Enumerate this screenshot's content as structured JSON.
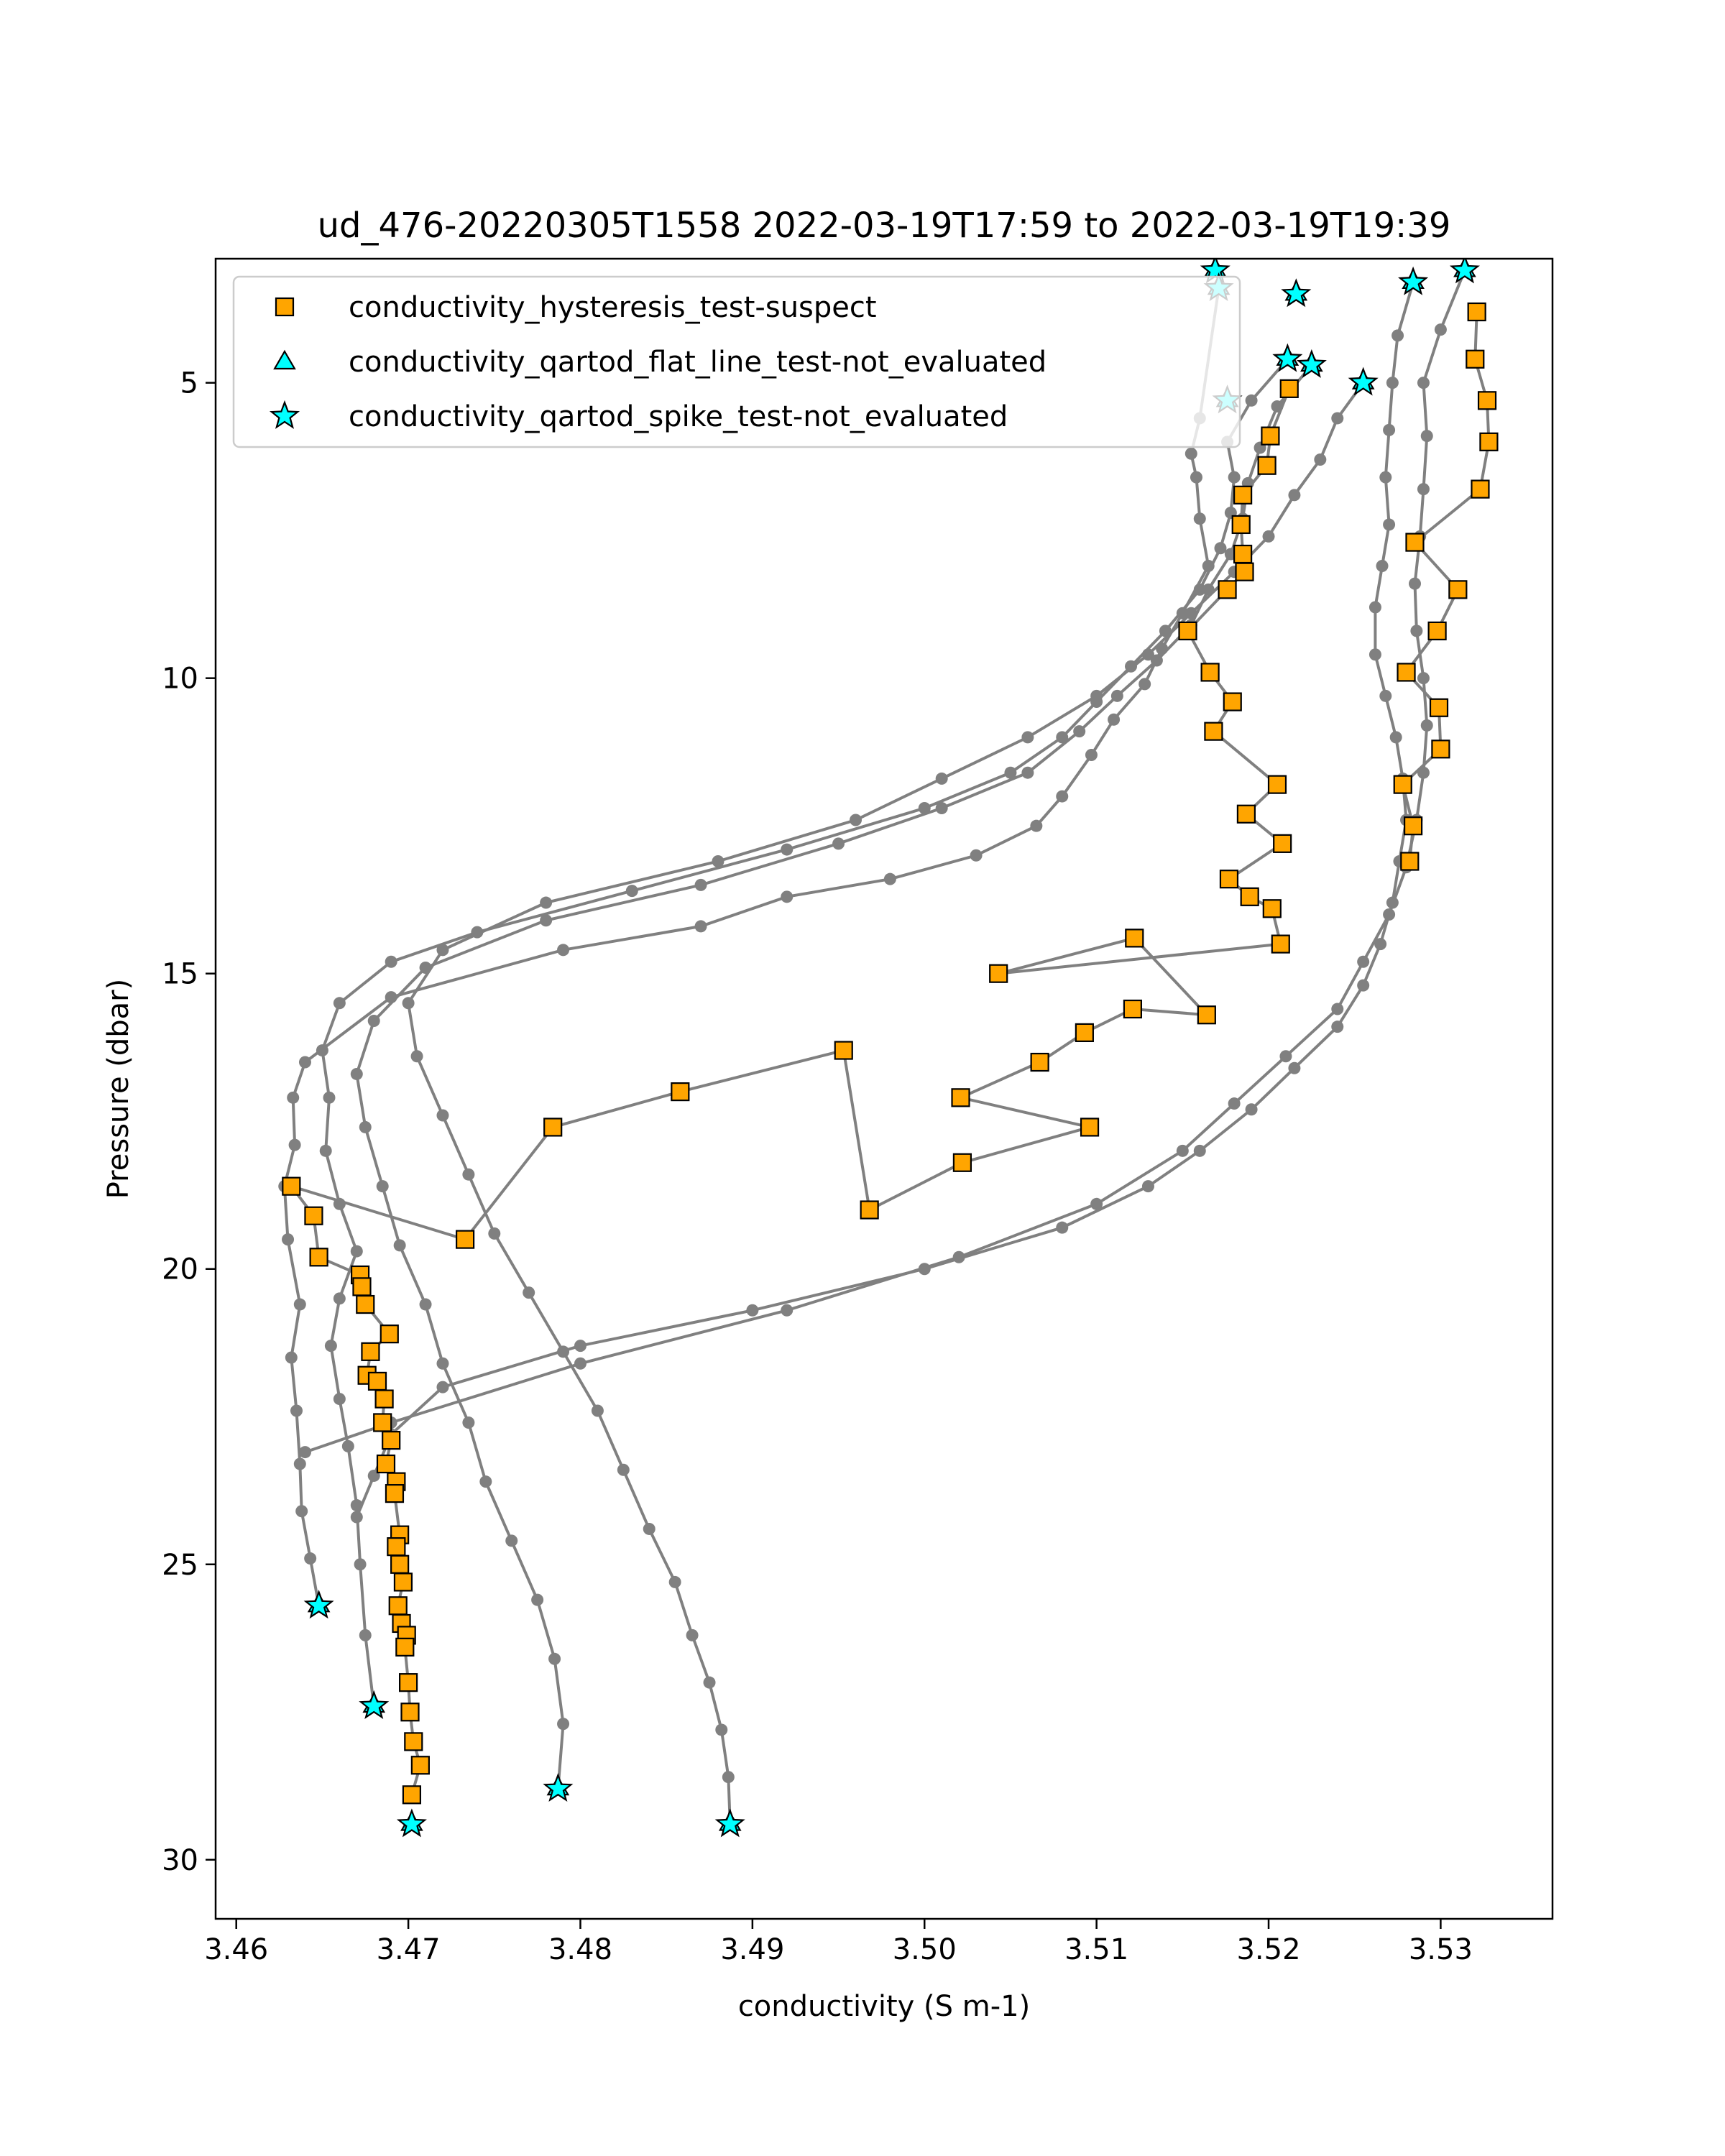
{
  "chart_data": {
    "type": "scatter",
    "title": "ud_476-20220305T1558 2022-03-19T17:59 to 2022-03-19T19:39",
    "xlabel": "conductivity (S m-1)",
    "ylabel": "Pressure (dbar)",
    "xlim": [
      3.4588,
      3.5365
    ],
    "ylim": [
      31.0,
      2.9
    ],
    "y_inverted": true,
    "grid": false,
    "legend_placement": "top-left",
    "xticks": [
      3.46,
      3.47,
      3.48,
      3.49,
      3.5,
      3.51,
      3.52,
      3.53
    ],
    "xtick_labels": [
      "3.46",
      "3.47",
      "3.48",
      "3.49",
      "3.50",
      "3.51",
      "3.52",
      "3.53"
    ],
    "yticks": [
      5,
      10,
      15,
      20,
      25,
      30
    ],
    "ytick_labels": [
      "5",
      "10",
      "15",
      "20",
      "25",
      "30"
    ],
    "colors": {
      "profile_line": "#808080",
      "suspect_fill": "#ffa500",
      "not_evaluated_fill": "#00ffff",
      "marker_edge": "#000000"
    },
    "series": [
      {
        "name": "conductivity_hysteresis_test-suspect",
        "marker": "square",
        "x": [
          3.5212,
          3.5201,
          3.5199,
          3.5185,
          3.5184,
          3.5185,
          3.5186,
          3.5176,
          3.5153,
          3.5166,
          3.5179,
          3.5168,
          3.5205,
          3.5187,
          3.5208,
          3.5177,
          3.5189,
          3.5202,
          3.5207,
          3.5043,
          3.5122,
          3.5164,
          3.5121,
          3.5093,
          3.5067,
          3.5021,
          3.5096,
          3.5022,
          3.4968,
          3.4953,
          3.4858,
          3.4784,
          3.4733,
          3.4632,
          3.4645,
          3.4648,
          3.4672,
          3.4673,
          3.4675,
          3.4689,
          3.4678,
          3.4676,
          3.4682,
          3.4686,
          3.4685,
          3.469,
          3.4687,
          3.4693,
          3.4692,
          3.4695,
          3.4693,
          3.4695,
          3.4697,
          3.4694,
          3.4696,
          3.4699,
          3.4698,
          3.47,
          3.4701,
          3.4703,
          3.4707,
          3.4702,
          3.5321,
          3.532,
          3.5327,
          3.5328,
          3.5323,
          3.5285,
          3.531,
          3.5298,
          3.528,
          3.5299,
          3.53,
          3.5278,
          3.5284,
          3.5282
        ],
        "y": [
          5.1,
          5.9,
          6.4,
          6.9,
          7.4,
          7.9,
          8.2,
          8.5,
          9.2,
          9.9,
          10.4,
          10.9,
          11.8,
          12.3,
          12.8,
          13.4,
          13.7,
          13.9,
          14.5,
          15.0,
          14.4,
          15.7,
          15.6,
          16.0,
          16.5,
          17.1,
          17.6,
          18.2,
          19.0,
          16.3,
          17.0,
          17.6,
          19.5,
          18.6,
          19.1,
          19.8,
          20.1,
          20.3,
          20.6,
          21.1,
          21.4,
          21.8,
          21.9,
          22.2,
          22.6,
          22.9,
          23.3,
          23.6,
          23.8,
          24.5,
          24.7,
          25.0,
          25.3,
          25.7,
          26.0,
          26.2,
          26.4,
          27.0,
          27.5,
          28.0,
          28.4,
          28.9,
          3.8,
          4.6,
          5.3,
          6.0,
          6.8,
          7.7,
          8.5,
          9.2,
          9.9,
          10.5,
          11.2,
          11.8,
          12.5,
          13.1
        ]
      },
      {
        "name": "conductivity_qartod_flat_line_test-not_evaluated",
        "marker": "triangle",
        "x": [
          3.5169,
          3.5171,
          3.5216,
          3.5211,
          3.5225,
          3.5255,
          3.5284,
          3.5314,
          3.5176,
          3.4648,
          3.468,
          3.4702,
          3.4787,
          3.4887
        ],
        "y": [
          3.1,
          3.4,
          3.5,
          4.6,
          4.7,
          5.0,
          3.3,
          3.1,
          5.3,
          25.7,
          27.4,
          29.4,
          28.8,
          29.4
        ]
      },
      {
        "name": "conductivity_qartod_spike_test-not_evaluated",
        "marker": "star",
        "x": [
          3.5169,
          3.5171,
          3.5216,
          3.5211,
          3.5225,
          3.5255,
          3.5284,
          3.5314,
          3.5176,
          3.4648,
          3.468,
          3.4702,
          3.4787,
          3.4887
        ],
        "y": [
          3.1,
          3.4,
          3.5,
          4.6,
          4.7,
          5.0,
          3.3,
          3.1,
          5.3,
          25.7,
          27.4,
          29.4,
          28.8,
          29.4
        ]
      }
    ],
    "profiles": [
      {
        "x": [
          3.5171,
          3.516,
          3.5155,
          3.5158,
          3.516,
          3.5165,
          3.515,
          3.5138,
          3.5128,
          3.511,
          3.5097,
          3.508,
          3.5065,
          3.503,
          3.498,
          3.492,
          3.487,
          3.479,
          3.469,
          3.464,
          3.4633,
          3.4634,
          3.4628,
          3.463,
          3.4637,
          3.4632,
          3.4635,
          3.4637,
          3.4638,
          3.4643,
          3.4648
        ],
        "y": [
          3.4,
          5.6,
          6.2,
          6.6,
          7.3,
          8.1,
          8.9,
          9.5,
          10.1,
          10.7,
          11.3,
          12.0,
          12.5,
          13.0,
          13.4,
          13.7,
          14.2,
          14.6,
          15.4,
          16.5,
          17.1,
          17.9,
          18.6,
          19.5,
          20.6,
          21.5,
          22.4,
          23.3,
          24.1,
          24.9,
          25.7
        ]
      },
      {
        "x": [
          3.5211,
          3.519,
          3.5176,
          3.518,
          3.5178,
          3.5172,
          3.516,
          3.514,
          3.512,
          3.51,
          3.508,
          3.505,
          3.5,
          3.492,
          3.483,
          3.474,
          3.469,
          3.466,
          3.465,
          3.4654,
          3.4652,
          3.466,
          3.467,
          3.466,
          3.4655,
          3.466,
          3.4665,
          3.467,
          3.4672,
          3.4675,
          3.468
        ],
        "y": [
          4.6,
          5.3,
          6.0,
          6.6,
          7.2,
          7.8,
          8.5,
          9.2,
          9.8,
          10.4,
          11.0,
          11.6,
          12.2,
          12.9,
          13.6,
          14.3,
          14.8,
          15.5,
          16.3,
          17.1,
          18.0,
          18.9,
          19.7,
          20.5,
          21.3,
          22.2,
          23.0,
          24.0,
          25.0,
          26.2,
          27.4
        ]
      },
      {
        "x": [
          3.5225,
          3.5205,
          3.5195,
          3.5188,
          3.5185,
          3.5178,
          3.5165,
          3.5155,
          3.5135,
          3.5112,
          3.509,
          3.506,
          3.501,
          3.495,
          3.487,
          3.478,
          3.471,
          3.468,
          3.467,
          3.4675,
          3.4685,
          3.4695,
          3.471,
          3.472,
          3.4735,
          3.4745,
          3.476,
          3.4775,
          3.4785,
          3.479,
          3.4787
        ],
        "y": [
          4.7,
          5.4,
          6.1,
          6.7,
          7.3,
          7.9,
          8.5,
          9.1,
          9.7,
          10.3,
          10.9,
          11.6,
          12.2,
          12.8,
          13.5,
          14.1,
          14.9,
          15.8,
          16.7,
          17.6,
          18.6,
          19.6,
          20.6,
          21.6,
          22.6,
          23.6,
          24.6,
          25.6,
          26.6,
          27.7,
          28.8
        ]
      },
      {
        "x": [
          3.5255,
          3.524,
          3.523,
          3.5215,
          3.52,
          3.518,
          3.5155,
          3.513,
          3.51,
          3.506,
          3.501,
          3.496,
          3.488,
          3.478,
          3.472,
          3.47,
          3.4705,
          3.472,
          3.4735,
          3.475,
          3.477,
          3.479,
          3.481,
          3.4825,
          3.484,
          3.4855,
          3.4865,
          3.4875,
          3.4882,
          3.4886,
          3.4887
        ],
        "y": [
          5.0,
          5.6,
          6.3,
          6.9,
          7.6,
          8.2,
          8.9,
          9.6,
          10.3,
          11.0,
          11.7,
          12.4,
          13.1,
          13.8,
          14.6,
          15.5,
          16.4,
          17.4,
          18.4,
          19.4,
          20.4,
          21.4,
          22.4,
          23.4,
          24.4,
          25.3,
          26.2,
          27.0,
          27.8,
          28.6,
          29.4
        ]
      },
      {
        "x": [
          3.5284,
          3.5275,
          3.5272,
          3.527,
          3.5268,
          3.527,
          3.5266,
          3.5262,
          3.5262,
          3.5268,
          3.5274,
          3.5278,
          3.528,
          3.5276,
          3.5272,
          3.5265,
          3.5255,
          3.524,
          3.5215,
          3.519,
          3.516,
          3.513,
          3.508,
          3.5,
          3.49,
          3.48,
          3.472,
          3.469,
          3.468,
          3.467
        ],
        "y": [
          3.3,
          4.2,
          5.0,
          5.8,
          6.6,
          7.4,
          8.1,
          8.8,
          9.6,
          10.3,
          11.0,
          11.7,
          12.4,
          13.1,
          13.8,
          14.5,
          15.2,
          15.9,
          16.6,
          17.3,
          18.0,
          18.6,
          19.3,
          20.0,
          20.7,
          21.3,
          22.0,
          22.8,
          23.5,
          24.2
        ]
      },
      {
        "x": [
          3.5314,
          3.53,
          3.529,
          3.5292,
          3.529,
          3.5288,
          3.5285,
          3.5286,
          3.529,
          3.5292,
          3.529,
          3.5286,
          3.528,
          3.527,
          3.5255,
          3.524,
          3.521,
          3.518,
          3.515,
          3.51,
          3.502,
          3.492,
          3.48,
          3.469,
          3.464
        ],
        "y": [
          3.1,
          4.1,
          5.0,
          5.9,
          6.8,
          7.6,
          8.4,
          9.2,
          10.0,
          10.8,
          11.6,
          12.4,
          13.2,
          14.0,
          14.8,
          15.6,
          16.4,
          17.2,
          18.0,
          18.9,
          19.8,
          20.7,
          21.6,
          22.6,
          23.1
        ]
      }
    ]
  }
}
